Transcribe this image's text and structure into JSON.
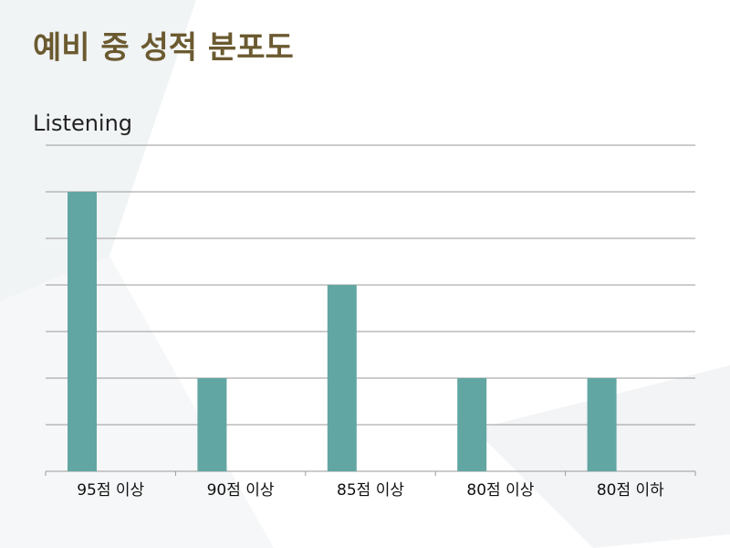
{
  "chart_data": {
    "type": "bar",
    "title": "예비 중 성적 분포도",
    "subtitle": "Listening",
    "categories": [
      "95점 이상",
      "90점 이상",
      "85점 이상",
      "80점 이상",
      "80점 이하"
    ],
    "values": [
      6,
      2,
      4,
      2,
      2
    ],
    "color": "#62a6a3",
    "ylim": [
      0,
      7
    ],
    "yticks": [
      0,
      1,
      2,
      3,
      4,
      5,
      6,
      7
    ],
    "grid": true
  }
}
